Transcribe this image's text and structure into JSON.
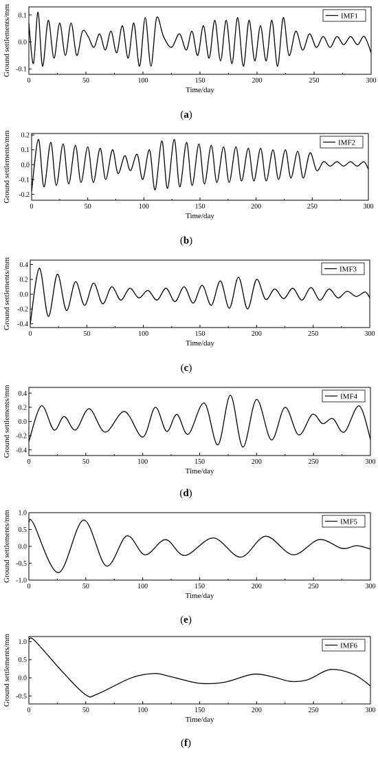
{
  "chart_data": [
    {
      "type": "line",
      "caption": "a",
      "xlabel": "Time/day",
      "ylabel": "Ground settlements/mm",
      "xlim": [
        0,
        300
      ],
      "ylim": [
        -0.12,
        0.13
      ],
      "xticks": [
        0,
        50,
        100,
        150,
        200,
        250,
        300
      ],
      "yticks": [
        -0.1,
        0.0,
        0.1
      ],
      "yticklabels": [
        "-0.1",
        "0.0",
        "0.1"
      ],
      "legend": "top-right",
      "grid": false,
      "series": [
        {
          "name": "IMF1",
          "x": [
            0,
            4,
            8,
            12,
            17,
            22,
            27,
            32,
            37,
            42,
            47,
            52,
            57,
            62,
            67,
            72,
            77,
            82,
            87,
            92,
            97,
            102,
            107,
            112,
            118,
            125,
            132,
            138,
            143,
            148,
            153,
            158,
            163,
            168,
            173,
            178,
            183,
            188,
            193,
            198,
            203,
            208,
            213,
            218,
            223,
            228,
            234,
            240,
            246,
            252,
            258,
            264,
            270,
            276,
            282,
            288,
            294,
            300
          ],
          "y": [
            0.07,
            -0.08,
            0.11,
            -0.09,
            0.08,
            -0.06,
            0.07,
            -0.05,
            0.07,
            -0.05,
            0.04,
            0.02,
            -0.02,
            0.03,
            -0.03,
            0.04,
            -0.04,
            0.06,
            -0.06,
            0.07,
            -0.09,
            0.09,
            -0.09,
            0.09,
            0.02,
            -0.02,
            0.03,
            -0.03,
            0.04,
            -0.05,
            0.06,
            -0.06,
            0.08,
            -0.07,
            0.08,
            -0.08,
            0.09,
            -0.09,
            0.08,
            -0.07,
            0.06,
            -0.07,
            0.08,
            -0.09,
            0.09,
            -0.05,
            0.04,
            -0.03,
            0.03,
            -0.02,
            0.02,
            -0.02,
            0.02,
            -0.01,
            0.02,
            -0.01,
            0.02,
            -0.04
          ]
        }
      ]
    },
    {
      "type": "line",
      "caption": "b",
      "xlabel": "Time/day",
      "ylabel": "Ground settlements/mm",
      "xlim": [
        0,
        300
      ],
      "ylim": [
        -0.24,
        0.21
      ],
      "xticks": [
        0,
        50,
        100,
        150,
        200,
        250,
        300
      ],
      "yticks": [
        -0.2,
        -0.1,
        0.0,
        0.1,
        0.2
      ],
      "yticklabels": [
        "-0.2",
        "-0.1",
        "0.0",
        "0.1",
        "0.2"
      ],
      "legend": "top-right",
      "grid": false,
      "series": [
        {
          "name": "IMF2",
          "x": [
            0,
            6,
            11,
            17,
            22,
            28,
            33,
            39,
            44,
            50,
            55,
            61,
            66,
            72,
            77,
            83,
            88,
            94,
            99,
            105,
            110,
            116,
            121,
            127,
            132,
            138,
            143,
            149,
            154,
            160,
            165,
            171,
            176,
            182,
            187,
            193,
            198,
            204,
            209,
            215,
            220,
            226,
            231,
            237,
            242,
            248,
            254,
            260,
            266,
            272,
            278,
            284,
            290,
            296,
            300
          ],
          "y": [
            -0.18,
            0.17,
            -0.15,
            0.15,
            -0.14,
            0.14,
            -0.13,
            0.13,
            -0.12,
            0.12,
            -0.12,
            0.11,
            -0.1,
            0.1,
            -0.06,
            0.06,
            -0.04,
            0.07,
            -0.1,
            0.1,
            -0.17,
            0.16,
            -0.16,
            0.17,
            -0.15,
            0.15,
            -0.14,
            0.14,
            -0.13,
            0.13,
            -0.12,
            0.12,
            -0.12,
            0.12,
            -0.11,
            0.11,
            -0.11,
            0.11,
            -0.11,
            0.1,
            -0.1,
            0.1,
            -0.09,
            0.09,
            -0.09,
            0.08,
            -0.04,
            0.02,
            -0.01,
            0.02,
            -0.01,
            0.02,
            -0.01,
            0.02,
            -0.03
          ]
        }
      ]
    },
    {
      "type": "line",
      "caption": "c",
      "xlabel": "Time/day",
      "ylabel": "Ground settlements/mm",
      "xlim": [
        0,
        300
      ],
      "ylim": [
        -0.45,
        0.46
      ],
      "xticks": [
        0,
        50,
        100,
        150,
        200,
        250,
        300
      ],
      "yticks": [
        -0.4,
        -0.2,
        0.0,
        0.2,
        0.4
      ],
      "yticklabels": [
        "-0.4",
        "-0.2",
        "0.0",
        "0.2",
        "0.4"
      ],
      "legend": "top-right",
      "grid": false,
      "series": [
        {
          "name": "IMF3",
          "x": [
            0,
            8,
            16,
            24,
            32,
            40,
            48,
            56,
            64,
            72,
            80,
            88,
            96,
            104,
            112,
            120,
            128,
            136,
            144,
            152,
            160,
            168,
            176,
            184,
            192,
            200,
            208,
            216,
            224,
            232,
            240,
            248,
            256,
            264,
            272,
            280,
            288,
            296,
            300
          ],
          "y": [
            -0.4,
            0.35,
            -0.3,
            0.27,
            -0.22,
            0.17,
            -0.15,
            0.15,
            -0.13,
            0.1,
            -0.08,
            0.08,
            -0.05,
            0.05,
            -0.08,
            0.08,
            -0.1,
            0.1,
            -0.12,
            0.12,
            -0.15,
            0.18,
            -0.19,
            0.23,
            -0.2,
            0.2,
            -0.07,
            0.07,
            -0.06,
            0.08,
            -0.08,
            0.09,
            -0.08,
            0.07,
            -0.05,
            0.04,
            -0.03,
            0.03,
            -0.05
          ]
        }
      ]
    },
    {
      "type": "line",
      "caption": "d",
      "xlabel": "Time/day",
      "ylabel": "Ground settlements/mm",
      "xlim": [
        0,
        300
      ],
      "ylim": [
        -0.48,
        0.48
      ],
      "xticks": [
        0,
        50,
        100,
        150,
        200,
        250,
        300
      ],
      "yticks": [
        -0.4,
        -0.2,
        0.0,
        0.2,
        0.4
      ],
      "yticklabels": [
        "-0.4",
        "-0.2",
        "0.0",
        "0.2",
        "0.4"
      ],
      "legend": "top-right",
      "grid": false,
      "series": [
        {
          "name": "IMF4",
          "x": [
            0,
            11,
            22,
            31,
            41,
            53,
            67,
            84,
            100,
            111,
            121,
            130,
            140,
            154,
            166,
            177,
            188,
            200,
            213,
            225,
            237,
            249,
            258,
            267,
            277,
            290,
            300
          ],
          "y": [
            -0.28,
            0.22,
            -0.12,
            0.07,
            -0.12,
            0.18,
            -0.15,
            0.14,
            -0.22,
            0.2,
            -0.14,
            0.1,
            -0.18,
            0.26,
            -0.33,
            0.37,
            -0.36,
            0.31,
            -0.26,
            0.2,
            -0.19,
            0.1,
            -0.03,
            0.04,
            -0.15,
            0.22,
            -0.25
          ]
        }
      ]
    },
    {
      "type": "line",
      "caption": "e",
      "xlabel": "Time/day",
      "ylabel": "Ground settlements/mm",
      "xlim": [
        0,
        300
      ],
      "ylim": [
        -1.0,
        1.0
      ],
      "xticks": [
        0,
        50,
        100,
        150,
        200,
        250,
        300
      ],
      "yticks": [
        -1.0,
        -0.5,
        0.0,
        0.5,
        1.0
      ],
      "yticklabels": [
        "-1.0",
        "-0.5",
        "0.0",
        "0.5",
        "1.0"
      ],
      "legend": "top-right",
      "grid": false,
      "series": [
        {
          "name": "IMF5",
          "x": [
            0,
            4,
            26,
            48,
            68,
            86,
            102,
            120,
            137,
            162,
            186,
            208,
            232,
            255,
            275,
            288,
            300
          ],
          "y": [
            0.72,
            0.68,
            -0.78,
            0.78,
            -0.58,
            0.31,
            -0.25,
            0.2,
            -0.27,
            0.25,
            -0.32,
            0.3,
            -0.25,
            0.2,
            -0.06,
            0.02,
            -0.08
          ]
        }
      ]
    },
    {
      "type": "line",
      "caption": "f",
      "xlabel": "Time/day",
      "ylabel": "Ground settlements/mm",
      "xlim": [
        0,
        300
      ],
      "ylim": [
        -0.72,
        1.14
      ],
      "xticks": [
        0,
        50,
        100,
        150,
        200,
        250,
        300
      ],
      "yticks": [
        -0.5,
        0.0,
        0.5,
        1.0
      ],
      "yticklabels": [
        "-0.5",
        "0.0",
        "0.5",
        "1.0"
      ],
      "legend": "top-right",
      "grid": false,
      "series": [
        {
          "name": "IMF6",
          "x": [
            0,
            5,
            30,
            50,
            60,
            90,
            110,
            125,
            150,
            172,
            197,
            215,
            230,
            245,
            265,
            285,
            300
          ],
          "y": [
            1.05,
            1.03,
            0.15,
            -0.47,
            -0.45,
            0.0,
            0.12,
            0.03,
            -0.15,
            -0.12,
            0.1,
            0.02,
            -0.1,
            -0.05,
            0.23,
            0.1,
            -0.22
          ]
        }
      ]
    }
  ]
}
